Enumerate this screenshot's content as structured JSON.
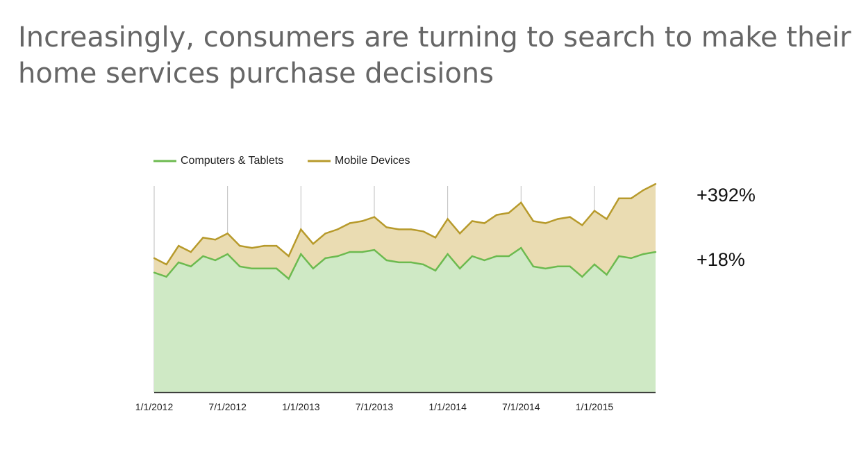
{
  "title": "Increasingly, consumers are turning to search to make their home services purchase decisions",
  "colors": {
    "computers_line": "#6cba4f",
    "computers_fill": "#cfe9c5",
    "mobile_line": "#b79a2b",
    "mobile_fill": "#eadcb2",
    "grid": "#bdbdbd",
    "axis": "#333333"
  },
  "chart_data": {
    "type": "area",
    "stacked": true,
    "title": "",
    "xlabel": "",
    "ylabel": "",
    "ylim": [
      0,
      100
    ],
    "grid": "vertical",
    "legend": "top-left",
    "x": [
      "1/1/2012",
      "2/1/2012",
      "3/1/2012",
      "4/1/2012",
      "5/1/2012",
      "6/1/2012",
      "7/1/2012",
      "8/1/2012",
      "9/1/2012",
      "10/1/2012",
      "11/1/2012",
      "12/1/2012",
      "1/1/2013",
      "2/1/2013",
      "3/1/2013",
      "4/1/2013",
      "5/1/2013",
      "6/1/2013",
      "7/1/2013",
      "8/1/2013",
      "9/1/2013",
      "10/1/2013",
      "11/1/2013",
      "12/1/2013",
      "1/1/2014",
      "2/1/2014",
      "3/1/2014",
      "4/1/2014",
      "5/1/2014",
      "6/1/2014",
      "7/1/2014",
      "8/1/2014",
      "9/1/2014",
      "10/1/2014",
      "11/1/2014",
      "12/1/2014",
      "1/1/2015",
      "2/1/2015",
      "3/1/2015",
      "4/1/2015",
      "5/1/2015",
      "6/1/2015"
    ],
    "x_ticks": [
      "1/1/2012",
      "7/1/2012",
      "1/1/2013",
      "7/1/2013",
      "1/1/2014",
      "7/1/2014",
      "1/1/2015"
    ],
    "series": [
      {
        "name": "Computers & Tablets",
        "values": [
          58,
          56,
          63,
          61,
          66,
          64,
          67,
          61,
          60,
          60,
          60,
          55,
          67,
          60,
          65,
          66,
          68,
          68,
          69,
          64,
          63,
          63,
          62,
          59,
          67,
          60,
          66,
          64,
          66,
          66,
          70,
          61,
          60,
          61,
          61,
          56,
          62,
          57,
          66,
          65,
          67,
          68
        ]
      },
      {
        "name": "Mobile Devices",
        "values": [
          7,
          6,
          8,
          7,
          9,
          10,
          10,
          10,
          10,
          11,
          11,
          11,
          12,
          12,
          12,
          13,
          14,
          15,
          16,
          16,
          16,
          16,
          16,
          16,
          17,
          17,
          17,
          18,
          20,
          21,
          22,
          22,
          22,
          23,
          24,
          25,
          26,
          27,
          28,
          29,
          31,
          33
        ]
      }
    ],
    "annotations": [
      {
        "label": "+392%",
        "series": "Mobile Devices"
      },
      {
        "label": "+18%",
        "series": "Computers & Tablets"
      }
    ]
  }
}
